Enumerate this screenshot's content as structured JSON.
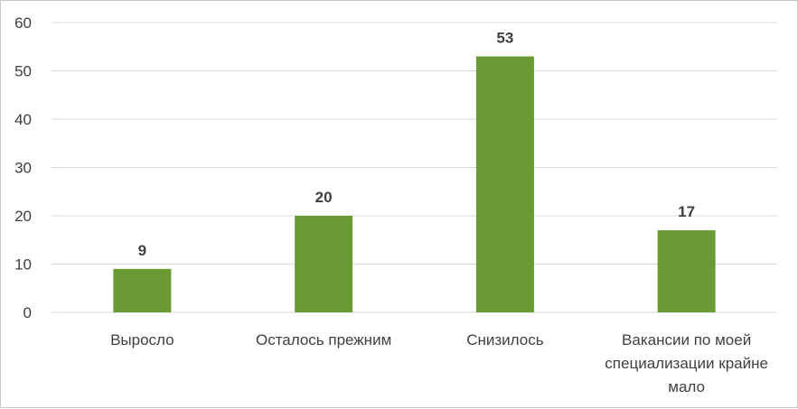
{
  "chart_data": {
    "type": "bar",
    "title": "",
    "xlabel": "",
    "ylabel": "",
    "categories": [
      [
        "Выросло"
      ],
      [
        "Осталось прежним"
      ],
      [
        "Снизилось"
      ],
      [
        "Вакансии по моей",
        "специализации крайне",
        "мало"
      ]
    ],
    "values": [
      9,
      20,
      53,
      17
    ],
    "ylim": [
      0,
      60
    ],
    "yticks": [
      0,
      10,
      20,
      30,
      40,
      50,
      60
    ],
    "grid": true,
    "legend": "none",
    "data_labels": true,
    "bar_color": "#6a9a34",
    "grid_color": "#d9d9d9",
    "text_color": "#404040"
  }
}
